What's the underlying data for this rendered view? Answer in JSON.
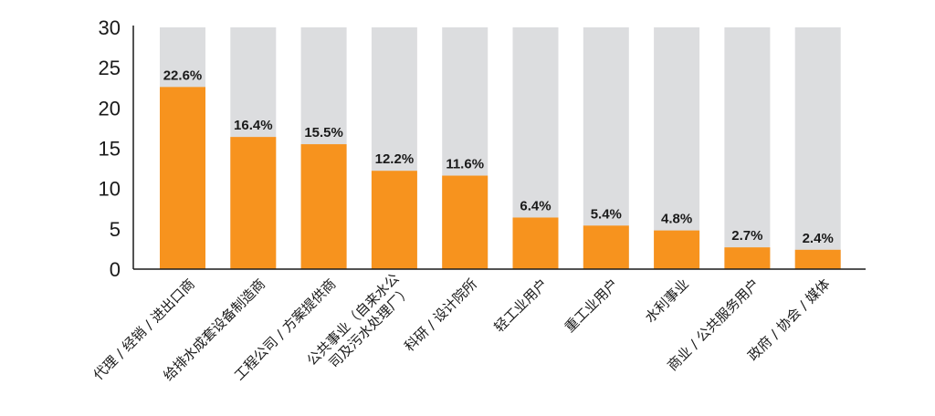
{
  "chart_data": {
    "type": "bar",
    "categories": [
      "代理 / 经销 / 进出口商",
      "给排水成套设备制造商",
      "工程公司 / 方案提供商",
      "公共事业（自来水公司及污水处理厂）",
      "科研 / 设计院所",
      "轻工业用户",
      "重工业用户",
      "水利事业",
      "商业 / 公共服务用户",
      "政府 / 协会 / 媒体"
    ],
    "category_lines": [
      [
        "代理 / 经销 / 进出口商"
      ],
      [
        "给排水成套设备制造商"
      ],
      [
        "工程公司 / 方案提供商"
      ],
      [
        "公共事业（自来水公",
        "司及污水处理厂）"
      ],
      [
        "科研 / 设计院所"
      ],
      [
        "轻工业用户"
      ],
      [
        "重工业用户"
      ],
      [
        "水利事业"
      ],
      [
        "商业 / 公共服务用户"
      ],
      [
        "政府 / 协会 / 媒体"
      ]
    ],
    "values": [
      22.6,
      16.4,
      15.5,
      12.2,
      11.6,
      6.4,
      5.4,
      4.8,
      2.7,
      2.4
    ],
    "value_labels": [
      "22.6%",
      "16.4%",
      "15.5%",
      "12.2%",
      "11.6%",
      "6.4%",
      "5.4%",
      "4.8%",
      "2.7%",
      "2.4%"
    ],
    "ylim": [
      0,
      30
    ],
    "yticks": [
      0,
      5,
      10,
      15,
      20,
      25,
      30
    ],
    "background_bar_max": 30,
    "colors": {
      "bar": "#f7931e",
      "background_bar": "#dcdddf",
      "axis": "#1a1a1a"
    }
  }
}
